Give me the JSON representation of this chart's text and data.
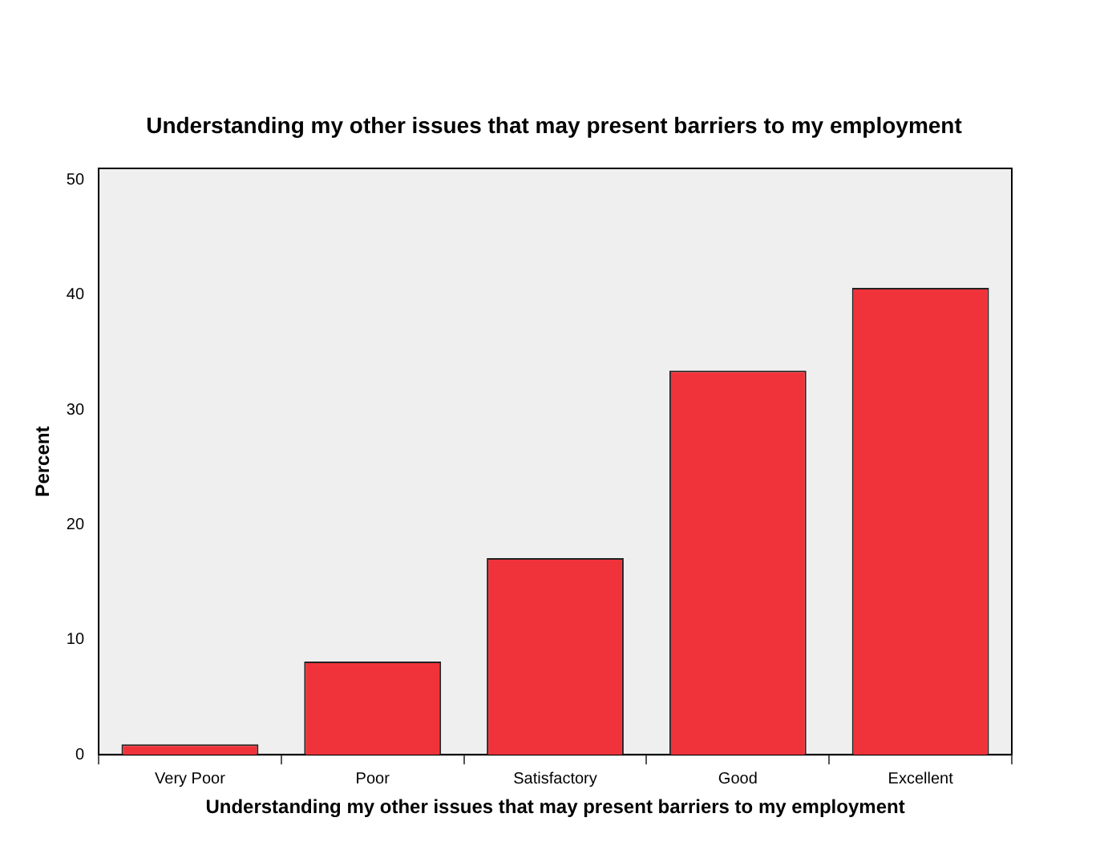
{
  "chart_data": {
    "type": "bar",
    "title": "Understanding my other issues that may present barriers to my employment",
    "xlabel": "Understanding my other issues that may present barriers to my employment",
    "ylabel": "Percent",
    "categories": [
      "Very Poor",
      "Poor",
      "Satisfactory",
      "Good",
      "Excellent"
    ],
    "values": [
      0.9,
      8.1,
      17.1,
      33.4,
      40.6
    ],
    "color": "#f0333a",
    "ylim": [
      0,
      51
    ],
    "yticks": [
      0,
      10,
      20,
      30,
      40,
      50
    ],
    "grid": false,
    "legend": false
  }
}
